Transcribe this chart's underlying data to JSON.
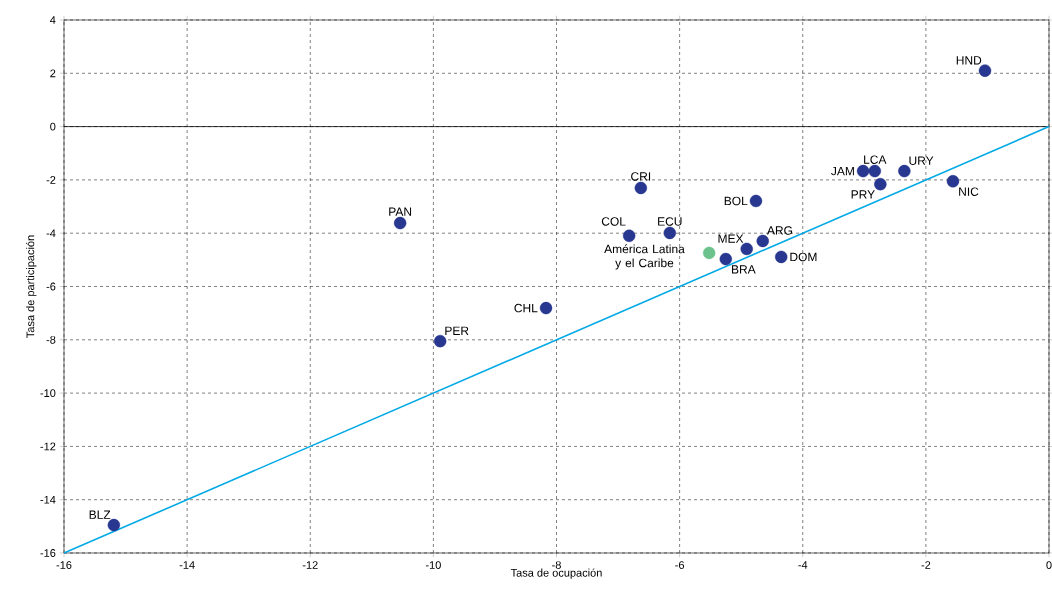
{
  "chart_data": {
    "type": "scatter",
    "xlabel": "Tasa de ocupación",
    "ylabel": "Tasa de participación",
    "xlim": [
      -16,
      0
    ],
    "ylim": [
      -16,
      4
    ],
    "xticks": [
      -16,
      -14,
      -12,
      -10,
      -8,
      -6,
      -4,
      -2,
      0
    ],
    "yticks": [
      -16,
      -14,
      -12,
      -10,
      -8,
      -6,
      -4,
      -2,
      0,
      2,
      4
    ],
    "grid": true,
    "marker": "circle",
    "series": [
      {
        "color": "#283891",
        "x": [
          -1.04,
          -1.56,
          -2.35,
          -2.83,
          -3.02,
          -2.74,
          -4.76,
          -6.63,
          -6.16,
          -6.82,
          -4.91,
          -4.65,
          -4.35,
          -5.25,
          -10.54,
          -8.17,
          -9.89,
          -15.19
        ],
        "values": [
          2.1,
          -2.05,
          -1.67,
          -1.67,
          -1.67,
          -2.16,
          -2.79,
          -2.3,
          -3.99,
          -4.1,
          -4.59,
          -4.29,
          -4.89,
          -4.97,
          -3.62,
          -6.81,
          -8.05,
          -14.95
        ]
      },
      {
        "color": "#6cc28d",
        "x": [
          -5.52
        ],
        "values": [
          -4.74
        ]
      },
      {
        "type": "line",
        "color": "#00a9e6",
        "marker": "none",
        "x": [
          -16,
          0
        ],
        "values": [
          -16,
          0
        ]
      }
    ],
    "ref_lines": [
      {
        "axis": "y",
        "value": 0,
        "color": "#000000",
        "line_style": "solid"
      }
    ],
    "annotations": [
      {
        "text": "HND",
        "x": -1.04,
        "y": 2.1
      },
      {
        "text": "NIC",
        "x": -1.56,
        "y": -2.05
      },
      {
        "text": "URY",
        "x": -2.35,
        "y": -1.67
      },
      {
        "text": "LCA",
        "x": -2.83,
        "y": -1.67
      },
      {
        "text": "JAM",
        "x": -3.02,
        "y": -1.67
      },
      {
        "text": "PRY",
        "x": -2.74,
        "y": -2.16
      },
      {
        "text": "BOL",
        "x": -4.76,
        "y": -2.79
      },
      {
        "text": "CRI",
        "x": -6.63,
        "y": -2.3
      },
      {
        "text": "ECU",
        "x": -6.16,
        "y": -3.99
      },
      {
        "text": "COL",
        "x": -6.82,
        "y": -4.1
      },
      {
        "text": "MEX",
        "x": -4.91,
        "y": -4.59
      },
      {
        "text": "ARG",
        "x": -4.65,
        "y": -4.29
      },
      {
        "text": "DOM",
        "x": -4.35,
        "y": -4.89
      },
      {
        "text": "BRA",
        "x": -5.25,
        "y": -4.97
      },
      {
        "text": "PAN",
        "x": -10.54,
        "y": -3.62
      },
      {
        "text": "CHL",
        "x": -8.17,
        "y": -6.81
      },
      {
        "text": "PER",
        "x": -9.89,
        "y": -8.05
      },
      {
        "text": "BLZ",
        "x": -15.19,
        "y": -14.95
      },
      {
        "text": "América Latina y el Caribe",
        "x": -5.52,
        "y": -4.74
      }
    ]
  }
}
